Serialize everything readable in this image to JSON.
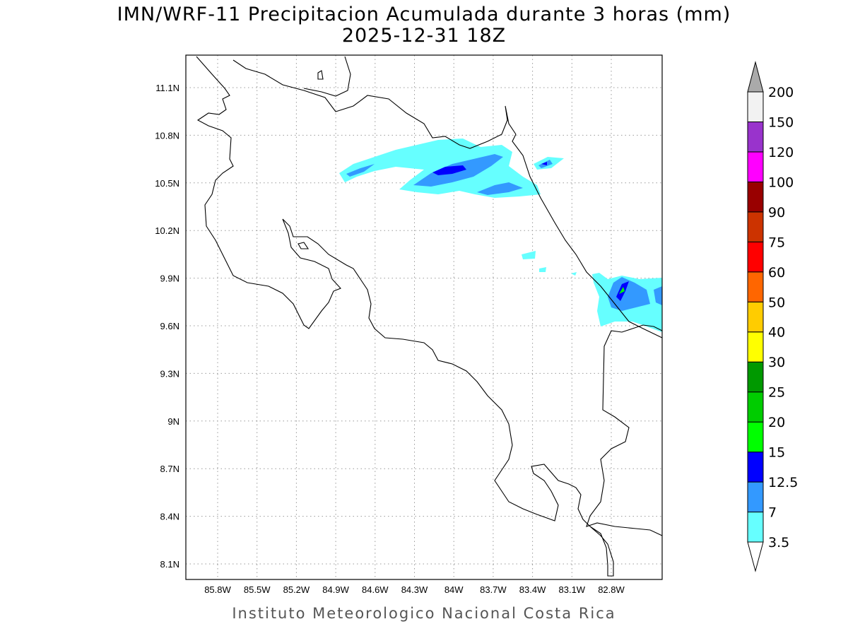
{
  "title": "IMN/WRF-11 Precipitacion Acumulada durante 3 horas (mm)",
  "subtitle": "2025-12-31 18Z",
  "credit": "Instituto Meteorologico Nacional Costa Rica",
  "chart_data": {
    "type": "map",
    "lon_ticks": [
      "85.8W",
      "85.5W",
      "85.2W",
      "84.9W",
      "84.6W",
      "84.3W",
      "84W",
      "83.7W",
      "83.4W",
      "83.1W",
      "82.8W"
    ],
    "lat_ticks": [
      "11.1N",
      "10.8N",
      "10.5N",
      "10.2N",
      "9.9N",
      "9.6N",
      "9.3N",
      "9N",
      "8.7N",
      "8.4N",
      "8.1N"
    ],
    "colorbar": {
      "levels": [
        "3.5",
        "7",
        "12.5",
        "15",
        "20",
        "25",
        "30",
        "40",
        "50",
        "60",
        "75",
        "90",
        "100",
        "120",
        "150",
        "200"
      ],
      "colors": [
        "#66ffff",
        "#3399ff",
        "#0000ff",
        "#00ff00",
        "#00cc00",
        "#009900",
        "#ffff00",
        "#ffcc00",
        "#ff6600",
        "#ff0000",
        "#cc3300",
        "#990000",
        "#ff00ff",
        "#9933cc",
        "#f2f2f2"
      ],
      "over_color": "#aaaaaa",
      "under_color": "#ffffff"
    },
    "grid": "dotted"
  }
}
